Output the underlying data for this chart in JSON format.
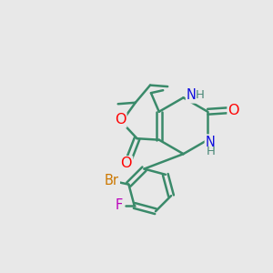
{
  "bg_color": "#e8e8e8",
  "bond_color": "#3a8a6a",
  "bond_width": 1.8,
  "atom_colors": {
    "O": "#ff0000",
    "N": "#1010dd",
    "Br": "#cc7700",
    "F": "#bb00bb",
    "H": "#4a8878",
    "C": "#3a8a6a"
  },
  "font_size_atom": 10.5
}
